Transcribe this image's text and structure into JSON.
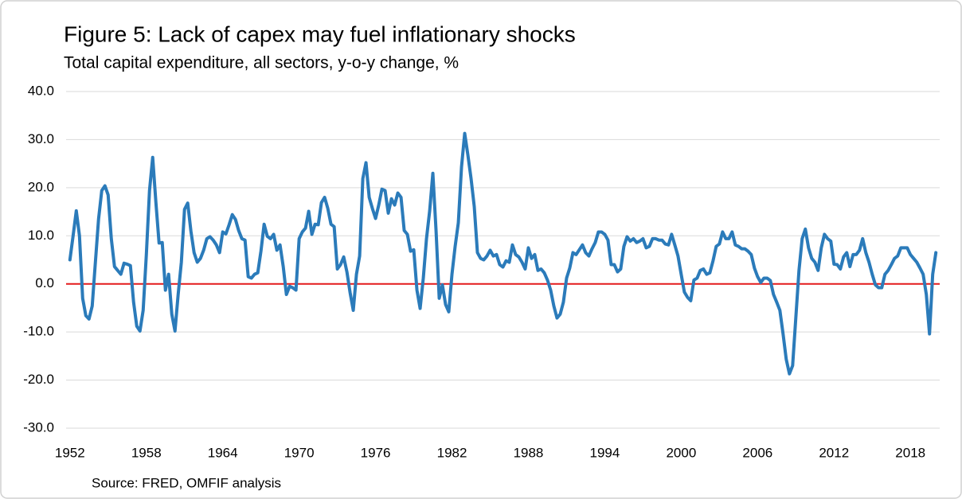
{
  "chart_data": {
    "type": "line",
    "title": "Figure 5: Lack of capex may fuel inflationary shocks",
    "subtitle": "Total capital expenditure, all sectors, y-o-y change, %",
    "source": "Source: FRED, OMFIF analysis",
    "color": "#2b7bba",
    "zero_line_color": "#e31a1c",
    "grid": true,
    "xlim": [
      1951.7,
      2020.3
    ],
    "xticks": [
      1952,
      1958,
      1964,
      1970,
      1976,
      1982,
      1988,
      1994,
      2000,
      2006,
      2012,
      2018
    ],
    "ylim": [
      -30,
      40
    ],
    "yticks": [
      {
        "value": -30,
        "label": "-30.0"
      },
      {
        "value": -20,
        "label": "-20.0"
      },
      {
        "value": -10,
        "label": "-10.0"
      },
      {
        "value": 0,
        "label": "0.0"
      },
      {
        "value": 10,
        "label": "10.0"
      },
      {
        "value": 20,
        "label": "20.0"
      },
      {
        "value": 30,
        "label": "30.0"
      },
      {
        "value": 40,
        "label": "40.0"
      }
    ],
    "x": [
      1952,
      1952.25,
      1952.5,
      1952.75,
      1953,
      1953.25,
      1953.5,
      1953.75,
      1954,
      1954.25,
      1954.5,
      1954.75,
      1955,
      1955.25,
      1955.5,
      1955.75,
      1956,
      1956.25,
      1956.5,
      1956.75,
      1957,
      1957.25,
      1957.5,
      1957.75,
      1958,
      1958.25,
      1958.5,
      1958.75,
      1959,
      1959.25,
      1959.5,
      1959.75,
      1960,
      1960.25,
      1960.5,
      1960.75,
      1961,
      1961.25,
      1961.5,
      1961.75,
      1962,
      1962.25,
      1962.5,
      1962.75,
      1963,
      1963.25,
      1963.5,
      1963.75,
      1964,
      1964.25,
      1964.5,
      1964.75,
      1965,
      1965.25,
      1965.5,
      1965.75,
      1966,
      1966.25,
      1966.5,
      1966.75,
      1967,
      1967.25,
      1967.5,
      1967.75,
      1968,
      1968.25,
      1968.5,
      1968.75,
      1969,
      1969.25,
      1969.5,
      1969.75,
      1970,
      1970.25,
      1970.5,
      1970.75,
      1971,
      1971.25,
      1971.5,
      1971.75,
      1972,
      1972.25,
      1972.5,
      1972.75,
      1973,
      1973.25,
      1973.5,
      1973.75,
      1974,
      1974.25,
      1974.5,
      1974.75,
      1975,
      1975.25,
      1975.5,
      1975.75,
      1976,
      1976.25,
      1976.5,
      1976.75,
      1977,
      1977.25,
      1977.5,
      1977.75,
      1978,
      1978.25,
      1978.5,
      1978.75,
      1979,
      1979.25,
      1979.5,
      1979.75,
      1980,
      1980.25,
      1980.5,
      1980.75,
      1981,
      1981.25,
      1981.5,
      1981.75,
      1982,
      1982.25,
      1982.5,
      1982.75,
      1983,
      1983.25,
      1983.5,
      1983.75,
      1984,
      1984.25,
      1984.5,
      1984.75,
      1985,
      1985.25,
      1985.5,
      1985.75,
      1986,
      1986.25,
      1986.5,
      1986.75,
      1987,
      1987.25,
      1987.5,
      1987.75,
      1988,
      1988.25,
      1988.5,
      1988.75,
      1989,
      1989.25,
      1989.5,
      1989.75,
      1990,
      1990.25,
      1990.5,
      1990.75,
      1991,
      1991.25,
      1991.5,
      1991.75,
      1992,
      1992.25,
      1992.5,
      1992.75,
      1993,
      1993.25,
      1993.5,
      1993.75,
      1994,
      1994.25,
      1994.5,
      1994.75,
      1995,
      1995.25,
      1995.5,
      1995.75,
      1996,
      1996.25,
      1996.5,
      1996.75,
      1997,
      1997.25,
      1997.5,
      1997.75,
      1998,
      1998.25,
      1998.5,
      1998.75,
      1999,
      1999.25,
      1999.5,
      1999.75,
      2000,
      2000.25,
      2000.5,
      2000.75,
      2001,
      2001.25,
      2001.5,
      2001.75,
      2002,
      2002.25,
      2002.5,
      2002.75,
      2003,
      2003.25,
      2003.5,
      2003.75,
      2004,
      2004.25,
      2004.5,
      2004.75,
      2005,
      2005.25,
      2005.5,
      2005.75,
      2006,
      2006.25,
      2006.5,
      2006.75,
      2007,
      2007.25,
      2007.5,
      2007.75,
      2008,
      2008.25,
      2008.5,
      2008.75,
      2009,
      2009.25,
      2009.5,
      2009.75,
      2010,
      2010.25,
      2010.5,
      2010.75,
      2011,
      2011.25,
      2011.5,
      2011.75,
      2012,
      2012.25,
      2012.5,
      2012.75,
      2013,
      2013.25,
      2013.5,
      2013.75,
      2014,
      2014.25,
      2014.5,
      2014.75,
      2015,
      2015.25,
      2015.5,
      2015.75,
      2016,
      2016.25,
      2016.5,
      2016.75,
      2017,
      2017.25,
      2017.5,
      2017.75,
      2018,
      2018.25,
      2018.5,
      2018.75,
      2019,
      2019.25,
      2019.5,
      2019.75,
      2020
    ],
    "values": [
      5,
      10,
      15.2,
      10,
      -3,
      -6.6,
      -7.3,
      -4.6,
      4.5,
      13.5,
      19.4,
      20.4,
      18.5,
      9.4,
      3.6,
      2.8,
      2,
      4.3,
      4.1,
      3.8,
      -3.8,
      -8.8,
      -9.8,
      -5.5,
      6,
      19.4,
      26.3,
      17,
      8.5,
      8.6,
      -1.3,
      2,
      -6.3,
      -9.8,
      -2.2,
      4.5,
      15.5,
      16.8,
      11,
      6.5,
      4.5,
      5.3,
      7,
      9.4,
      9.8,
      9.1,
      8.1,
      6.5,
      10.8,
      10.4,
      12.3,
      14.4,
      13.4,
      11.1,
      9.4,
      9.1,
      1.5,
      1.2,
      2,
      2.3,
      6.8,
      12.4,
      9.9,
      9.4,
      10.3,
      7,
      8.1,
      3.6,
      -2.2,
      -0.5,
      -0.8,
      -1.3,
      9.4,
      10.8,
      11.6,
      15.1,
      10.3,
      12.4,
      12.3,
      16.9,
      18,
      15.7,
      12.4,
      11.9,
      3.1,
      4,
      5.6,
      2.5,
      -1.8,
      -5.5,
      2,
      5.8,
      21.9,
      25.2,
      18,
      15.7,
      13.6,
      16.4,
      19.7,
      19.4,
      14.7,
      17.7,
      16.4,
      18.9,
      18,
      11.1,
      10.3,
      6.8,
      7.1,
      -1.3,
      -5.1,
      1.2,
      9.4,
      15.2,
      23,
      11.1,
      -3,
      -0.2,
      -4.3,
      -5.8,
      2,
      7.8,
      12.7,
      24.3,
      31.3,
      26.8,
      21.9,
      16.1,
      6.5,
      5.3,
      5,
      5.8,
      7,
      5.8,
      6.1,
      4,
      3.5,
      4.8,
      4.5,
      8.1,
      6.1,
      5.6,
      4.5,
      3.1,
      7.5,
      5.3,
      6.1,
      2.8,
      3.1,
      2.3,
      0.8,
      -1.3,
      -4.6,
      -7.1,
      -6.3,
      -3.8,
      1.2,
      3.3,
      6.5,
      6.1,
      7.1,
      8.1,
      6.5,
      5.8,
      7.3,
      8.6,
      10.8,
      10.8,
      10.3,
      9.1,
      4,
      4,
      2.5,
      3.1,
      7.8,
      9.8,
      8.9,
      9.4,
      8.6,
      8.9,
      9.4,
      7.5,
      7.8,
      9.4,
      9.4,
      9.1,
      9.1,
      8.3,
      8.1,
      10.3,
      8.1,
      5.8,
      2,
      -1.7,
      -2.8,
      -3.5,
      0.8,
      1.2,
      2.8,
      3.1,
      2,
      2.3,
      4.8,
      7.8,
      8.3,
      10.8,
      9.4,
      9.4,
      10.8,
      8.1,
      7.8,
      7.3,
      7.3,
      6.8,
      6.1,
      3.3,
      1.5,
      0.3,
      1.2,
      1.2,
      0.7,
      -2.2,
      -3.8,
      -5.5,
      -10.4,
      -15.7,
      -18.7,
      -17,
      -7.1,
      2.8,
      9.4,
      11.4,
      7.5,
      5.3,
      4.5,
      2.8,
      7.5,
      10.3,
      9.4,
      8.9,
      4.1,
      4,
      3.1,
      5.6,
      6.5,
      3.6,
      6.1,
      6.1,
      7,
      9.4,
      6.5,
      4.5,
      2,
      -0.2,
      -0.8,
      -0.8,
      2,
      2.8,
      4,
      5.3,
      5.8,
      7.5,
      7.5,
      7.5,
      6.1,
      5.3,
      4.5,
      3.3,
      2,
      -2.2,
      -10.4,
      2,
      6.5
    ]
  }
}
